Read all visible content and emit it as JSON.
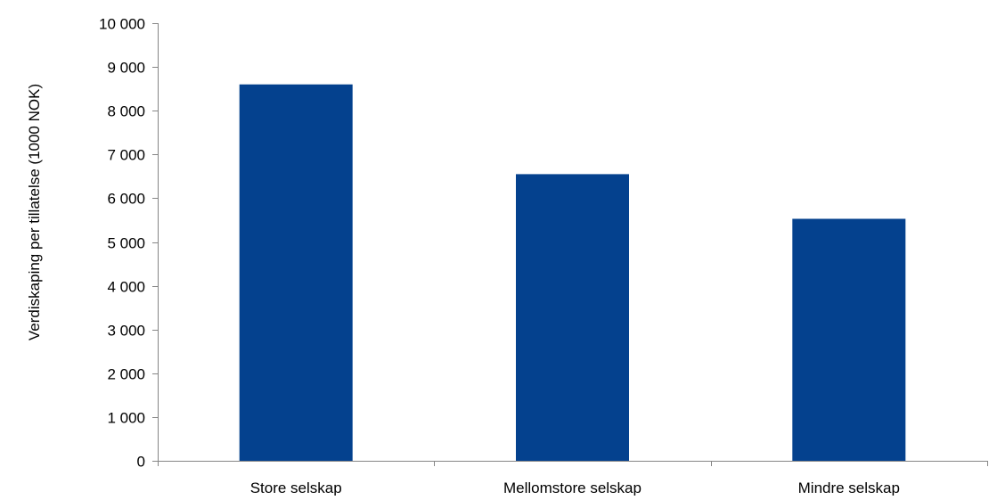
{
  "chart_data": {
    "type": "bar",
    "title": "",
    "xlabel": "",
    "ylabel": "Verdiskaping per tillatelse (1000 NOK)",
    "categories": [
      "Store selskap",
      "Mellomstore selskap",
      "Mindre selskap"
    ],
    "values": [
      8600,
      6550,
      5530
    ],
    "ylim": [
      0,
      10000
    ],
    "yticks": [
      0,
      1000,
      2000,
      3000,
      4000,
      5000,
      6000,
      7000,
      8000,
      9000,
      10000
    ],
    "ytick_labels": [
      "0",
      "1 000",
      "2 000",
      "3 000",
      "4 000",
      "5 000",
      "6 000",
      "7 000",
      "8 000",
      "9 000",
      "10 000"
    ],
    "grid": false,
    "legend": "none",
    "bar_color": "#04418E",
    "axis_color": "#868686"
  }
}
